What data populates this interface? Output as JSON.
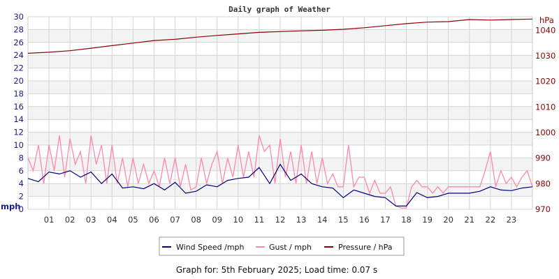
{
  "chart_data": {
    "type": "line",
    "title": "Daily graph of Weather",
    "x_ticks": [
      "01",
      "02",
      "03",
      "04",
      "05",
      "06",
      "07",
      "08",
      "09",
      "10",
      "11",
      "12",
      "13",
      "14",
      "15",
      "16",
      "17",
      "18",
      "19",
      "20",
      "21",
      "22",
      "23"
    ],
    "xlim": [
      0,
      24
    ],
    "left_axis": {
      "label": "mph",
      "ylim": [
        0,
        30
      ],
      "ticks": [
        0,
        2,
        4,
        6,
        8,
        10,
        12,
        14,
        16,
        18,
        20,
        22,
        24,
        26,
        28,
        30
      ],
      "color": "#1a1a8c"
    },
    "right_axis": {
      "label": "hPa",
      "ylim": [
        970,
        1045.3
      ],
      "ticks": [
        970,
        980,
        990,
        1000,
        1010,
        1020,
        1030,
        1040
      ],
      "color": "#8b0000"
    },
    "grid": true,
    "legend_position": "bottom",
    "series": [
      {
        "name": "Wind Speed /mph",
        "color": "#000080",
        "axis": "left",
        "x_step_hours": 0.5,
        "values": [
          4.8,
          4.3,
          5.8,
          5.5,
          6.0,
          5.0,
          5.8,
          4.0,
          5.5,
          3.3,
          3.5,
          3.2,
          4.0,
          3.0,
          4.2,
          2.5,
          2.8,
          3.8,
          3.5,
          4.5,
          4.8,
          5.0,
          6.5,
          4.0,
          7.0,
          4.5,
          5.5,
          4.0,
          3.5,
          3.3,
          1.8,
          3.0,
          2.5,
          2.0,
          1.8,
          0.5,
          0.5,
          2.6,
          1.8,
          2.0,
          2.5,
          2.5,
          2.5,
          2.8,
          3.5,
          3.0,
          2.9,
          3.3,
          3.5
        ]
      },
      {
        "name": "Gust / mph",
        "color": "#ff88aa",
        "axis": "left",
        "x_step_hours": 0.25,
        "values": [
          8,
          6,
          10,
          4,
          10,
          6,
          11.5,
          5,
          11,
          7,
          9,
          4,
          11.5,
          7,
          10,
          4,
          10,
          4,
          8,
          3.5,
          8,
          4,
          7,
          4,
          6,
          3.5,
          8,
          4,
          8,
          3.5,
          7,
          3,
          3.5,
          8,
          4,
          7,
          9,
          4,
          8,
          5,
          10,
          5,
          9,
          5,
          11.5,
          9,
          10,
          4,
          11,
          5,
          9,
          4,
          10,
          4,
          9,
          4,
          8,
          4,
          5.5,
          3.5,
          3.5,
          10,
          3.5,
          5,
          5,
          2.5,
          4.5,
          2.5,
          2.5,
          3.5,
          0.5,
          0.2,
          0.2,
          3.5,
          4.5,
          3.5,
          3.5,
          2.5,
          3.5,
          2.5,
          3.5,
          3.5,
          3.5,
          3.5,
          3.5,
          3.5,
          3.5,
          6,
          9,
          3.5,
          6,
          4,
          5,
          3.5,
          5,
          6,
          3.5
        ]
      },
      {
        "name": "Pressure / hPa",
        "color": "#8b0000",
        "axis": "right",
        "x_step_hours": 1,
        "values": [
          1031.0,
          1031.4,
          1032.0,
          1033.0,
          1034.0,
          1035.0,
          1036.0,
          1036.5,
          1037.3,
          1038.0,
          1038.6,
          1039.2,
          1039.5,
          1039.8,
          1040.0,
          1040.4,
          1041.0,
          1041.8,
          1042.6,
          1043.2,
          1043.4,
          1044.2,
          1044.0,
          1044.2,
          1044.4
        ]
      }
    ]
  },
  "footer": "Graph for: 5th February 2025; Load time: 0.07 s"
}
